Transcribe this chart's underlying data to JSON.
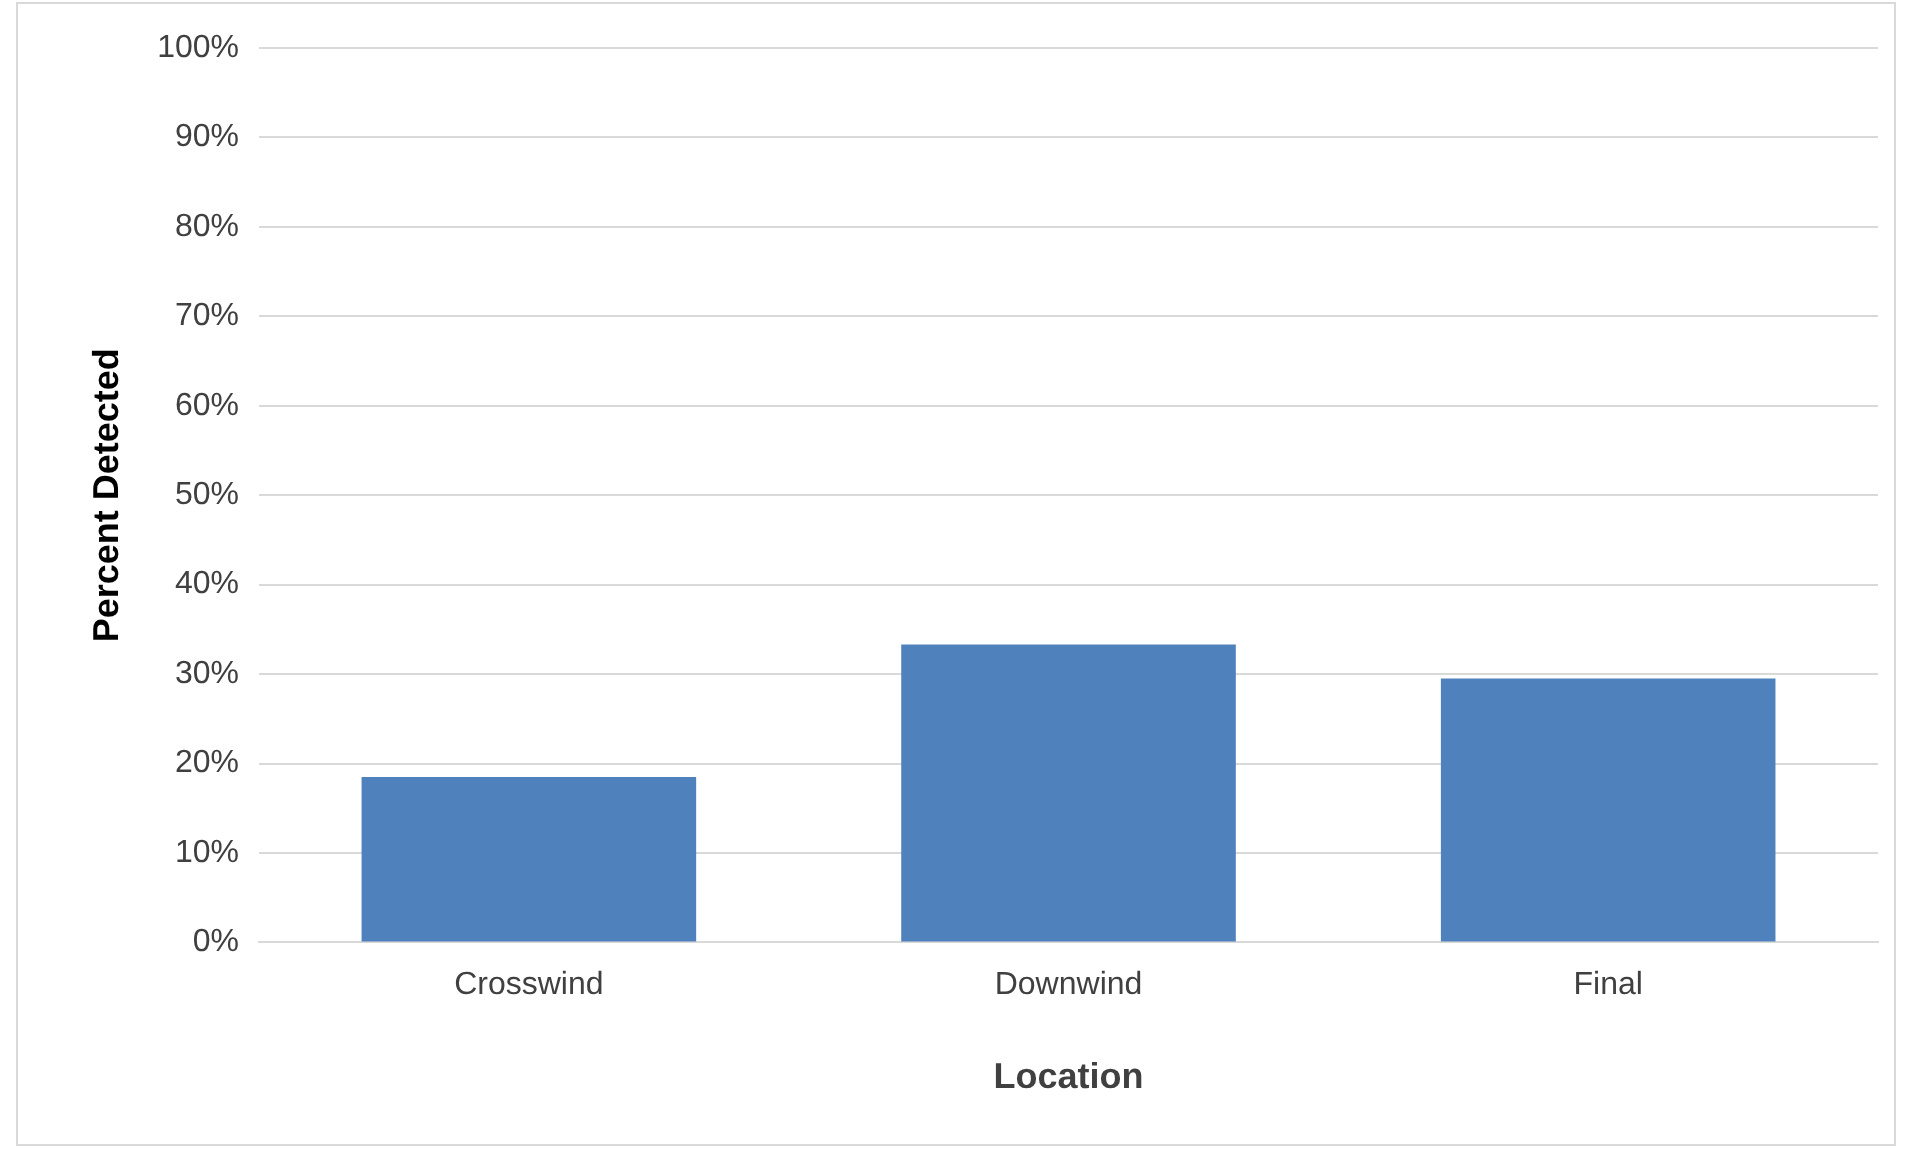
{
  "chart_data": {
    "type": "bar",
    "xlabel": "Location",
    "ylabel": "Percent Detected",
    "categories": [
      "Crosswind",
      "Downwind",
      "Final"
    ],
    "values": [
      18.5,
      33.3,
      29.5
    ],
    "color": "#4f81bd",
    "ylim": [
      0,
      100
    ],
    "yticks": [
      {
        "value": 0,
        "label": "0%"
      },
      {
        "value": 10,
        "label": "10%"
      },
      {
        "value": 20,
        "label": "20%"
      },
      {
        "value": 30,
        "label": "30%"
      },
      {
        "value": 40,
        "label": "40%"
      },
      {
        "value": 50,
        "label": "50%"
      },
      {
        "value": 60,
        "label": "60%"
      },
      {
        "value": 70,
        "label": "70%"
      },
      {
        "value": 80,
        "label": "80%"
      },
      {
        "value": 90,
        "label": "90%"
      },
      {
        "value": 100,
        "label": "100%"
      }
    ],
    "grid": "y"
  }
}
